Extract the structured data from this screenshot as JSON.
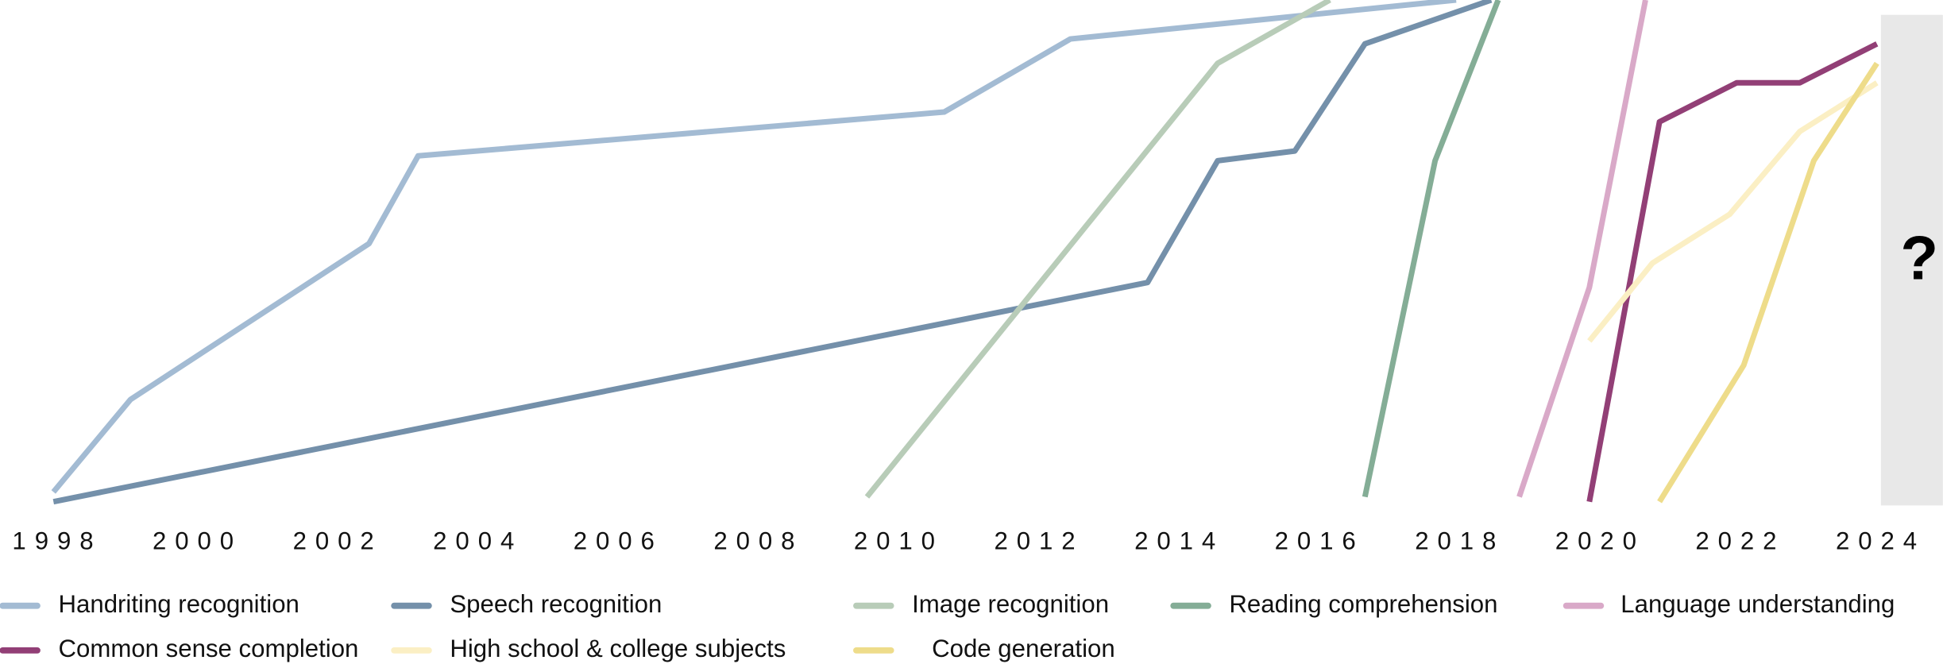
{
  "chart_data": {
    "type": "line",
    "xlim": [
      1997.24,
      2024.94
    ],
    "xticks": [
      1998,
      2000,
      2002,
      2004,
      2006,
      2008,
      2010,
      2012,
      2014,
      2016,
      2018,
      2020,
      2022,
      2024
    ],
    "ylim": [
      -100,
      3
    ],
    "reference_line": 0,
    "annotation": "?",
    "series": [
      {
        "name": "Handriting recognition",
        "color": "#a3bbd3",
        "x": [
          1998,
          1999.1,
          2002.5,
          2003.2,
          2010.7,
          2012.5,
          2018
        ],
        "values": [
          -98,
          -79,
          -47,
          -29,
          -20,
          -5,
          3
        ]
      },
      {
        "name": "Speech recognition",
        "color": "#7490aa",
        "x": [
          1998,
          2013.6,
          2014.6,
          2015.7,
          2016.7,
          2018.5
        ],
        "values": [
          -100,
          -55,
          -30,
          -28,
          -6,
          3
        ]
      },
      {
        "name": "Image recognition",
        "color": "#b8ccb8",
        "x": [
          2009.6,
          2014.6,
          2016.2
        ],
        "values": [
          -99,
          -10,
          3
        ]
      },
      {
        "name": "Reading comprehension",
        "color": "#84ad96",
        "x": [
          2016.7,
          2017.7,
          2018.6
        ],
        "values": [
          -99,
          -30,
          3
        ]
      },
      {
        "name": "Language understanding",
        "color": "#d9a9c8",
        "x": [
          2018.9,
          2019.9,
          2020.7
        ],
        "values": [
          -99,
          -56,
          3
        ]
      },
      {
        "name": "Common sense completion",
        "color": "#923f76",
        "x": [
          2019.9,
          2020.9,
          2022,
          2022.9,
          2024
        ],
        "values": [
          -100,
          -22,
          -14,
          -14,
          -6
        ]
      },
      {
        "name": "High school & college subjects",
        "color": "#fbefc4",
        "x": [
          2019.9,
          2020.8,
          2021.9,
          2022.9,
          2024
        ],
        "values": [
          -67,
          -51,
          -41,
          -24,
          -14
        ]
      },
      {
        "name": "Code generation",
        "color": "#eedc8a",
        "x": [
          2020.9,
          2022.1,
          2023.1,
          2024
        ],
        "values": [
          -100,
          -72,
          -30,
          -10
        ]
      }
    ]
  }
}
